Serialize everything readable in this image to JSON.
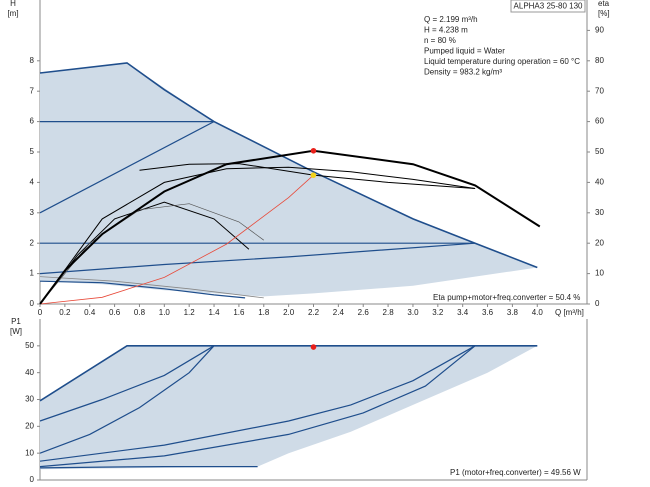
{
  "chart_data": [
    {
      "type": "line",
      "model": "ALPHA3 25-80 130",
      "info_lines": [
        "Q = 2.199 m³/h",
        "H = 4.238 m",
        "n = 80 %",
        "Pumped liquid = Water",
        "Liquid temperature during operation = 60 °C",
        "Density = 983.2 kg/m³"
      ],
      "note": "Eta pump+motor+freq.converter = 50.4 %",
      "ylabel": "H",
      "ylabel_unit": "[m]",
      "y2label": "eta",
      "y2label_unit": "[%]",
      "xlabel": "Q [m³/h]",
      "xlim": [
        0,
        4.4
      ],
      "ylim": [
        0,
        10
      ],
      "y2lim": [
        0,
        100
      ],
      "xticks": [
        0,
        0.2,
        0.4,
        0.6,
        0.8,
        {
          "value": 1,
          "label": "1.0"
        },
        1.2,
        1.4,
        1.6,
        1.8,
        {
          "value": 2,
          "label": "2.0"
        },
        2.2,
        2.4,
        2.6,
        2.8,
        {
          "value": 3,
          "label": "3.0"
        },
        3.2,
        3.4,
        3.6,
        3.8,
        {
          "value": 4,
          "label": "4.0"
        }
      ],
      "yticks": [
        0,
        1,
        2,
        3,
        4,
        5,
        6,
        7,
        8
      ],
      "y2ticks": [
        0,
        10,
        20,
        30,
        40,
        50,
        60,
        70,
        80,
        90
      ],
      "series": [
        {
          "style": "area",
          "color": "#cfdbe7",
          "x": [
            0,
            0.7,
            1.4,
            2.2,
            3.0,
            3.5,
            4.0,
            3.0,
            2.2,
            1.8,
            1.0,
            0.5,
            0
          ],
          "values": [
            7.6,
            7.93,
            6.0,
            4.35,
            2.8,
            2.0,
            1.2,
            0.6,
            0.35,
            0.25,
            0.45,
            0.65,
            0.75
          ]
        },
        {
          "style": "line",
          "color": "#1f4e8c",
          "width": 1.6,
          "x": [
            0,
            0.7,
            1.0,
            1.4,
            2.2,
            3.0,
            3.5,
            4.0
          ],
          "values": [
            7.6,
            7.93,
            7.05,
            6.0,
            4.35,
            2.8,
            2.0,
            1.2
          ]
        },
        {
          "style": "line",
          "color": "#1f4e8c",
          "width": 1.2,
          "x": [
            0,
            1.4
          ],
          "values": [
            6.0,
            6.0
          ]
        },
        {
          "style": "line",
          "color": "#1f4e8c",
          "width": 1.2,
          "x": [
            0,
            1.4
          ],
          "values": [
            3.0,
            6.0
          ]
        },
        {
          "style": "line",
          "color": "#1f4e8c",
          "width": 1.2,
          "x": [
            0,
            3.5
          ],
          "values": [
            2.0,
            2.0
          ]
        },
        {
          "style": "line",
          "color": "#1f4e8c",
          "width": 1.2,
          "x": [
            0,
            1.0,
            2.0,
            3.5
          ],
          "values": [
            1.0,
            1.3,
            1.55,
            2.0
          ]
        },
        {
          "style": "line",
          "color": "#1f4e8c",
          "width": 1.2,
          "x": [
            0,
            0.5,
            1.0,
            1.4,
            1.65
          ],
          "values": [
            0.75,
            0.7,
            0.5,
            0.3,
            0.2
          ]
        },
        {
          "style": "line",
          "color": "#888888",
          "width": 0.8,
          "x": [
            0,
            0.6,
            1.2,
            1.8
          ],
          "values": [
            0.9,
            0.75,
            0.5,
            0.2
          ]
        },
        {
          "style": "line",
          "color": "#000000",
          "width": 1.0,
          "x": [
            0,
            0.5,
            1.0,
            1.5,
            2.0,
            2.5,
            3.0,
            3.5
          ],
          "values": [
            0,
            2.8,
            4.0,
            4.45,
            4.5,
            4.35,
            4.1,
            3.8
          ]
        },
        {
          "style": "line",
          "color": "#000000",
          "width": 1.0,
          "x": [
            0.8,
            1.2,
            1.6,
            2.2,
            2.8,
            3.5
          ],
          "values": [
            4.4,
            4.6,
            4.62,
            4.24,
            4.0,
            3.8
          ]
        },
        {
          "style": "line",
          "color": "#000000",
          "width": 1.0,
          "x": [
            0,
            0.3,
            0.6,
            1.0,
            1.4,
            1.68
          ],
          "values": [
            0,
            1.6,
            2.8,
            3.35,
            2.8,
            1.8
          ]
        },
        {
          "style": "line",
          "color": "#555555",
          "width": 0.7,
          "x": [
            0,
            0.4,
            0.8,
            1.2,
            1.6,
            1.8
          ],
          "values": [
            0,
            2.0,
            3.1,
            3.3,
            2.7,
            2.1
          ]
        },
        {
          "style": "line",
          "color": "#e84a3a",
          "width": 0.8,
          "x": [
            0,
            0.5,
            1.0,
            1.5,
            2.0,
            2.199
          ],
          "values": [
            0,
            0.22,
            0.875,
            1.97,
            3.5,
            4.238
          ]
        },
        {
          "style": "line",
          "color": "#000000",
          "width": 2.0,
          "axis": "y2",
          "x": [
            0,
            0.2,
            0.5,
            1.0,
            1.5,
            2.2,
            3.0,
            3.5,
            4.02
          ],
          "values": [
            0,
            11,
            23,
            37,
            46,
            50.4,
            46,
            39,
            25.5
          ]
        }
      ],
      "points": [
        {
          "color": "#e8201a",
          "axis": "y2",
          "x": 2.2,
          "y": 50.4
        },
        {
          "color": "#f2d21a",
          "x": 2.199,
          "y": 4.238
        }
      ]
    },
    {
      "type": "line",
      "ylabel": "P1",
      "ylabel_unit": "[W]",
      "note": "P1 (motor+freq.converter) = 49.56 W",
      "xlim": [
        0,
        4.4
      ],
      "ylim": [
        0,
        60
      ],
      "yticks": [
        0,
        10,
        20,
        30,
        40,
        50
      ],
      "series": [
        {
          "style": "area",
          "color": "#cfdbe7",
          "x": [
            0,
            0.7,
            4.0,
            3.6,
            3.0,
            2.5,
            2.0,
            1.75,
            0
          ],
          "values": [
            29.5,
            50,
            50,
            40,
            28,
            18,
            10,
            5,
            4
          ]
        },
        {
          "style": "line",
          "color": "#1f4e8c",
          "width": 1.6,
          "x": [
            0,
            0.7,
            4.0
          ],
          "values": [
            29.5,
            50,
            50
          ]
        },
        {
          "style": "line",
          "color": "#1f4e8c",
          "width": 1.2,
          "x": [
            0,
            0.5,
            1.0,
            1.4
          ],
          "values": [
            22,
            30,
            39,
            50
          ]
        },
        {
          "style": "line",
          "color": "#1f4e8c",
          "width": 1.2,
          "x": [
            0,
            0.4,
            0.8,
            1.2,
            1.4
          ],
          "values": [
            10,
            17,
            27,
            40,
            50
          ]
        },
        {
          "style": "line",
          "color": "#1f4e8c",
          "width": 1.2,
          "x": [
            0,
            1.0,
            2.0,
            2.5,
            3.0,
            3.5
          ],
          "values": [
            7,
            13,
            22,
            28,
            37,
            50
          ]
        },
        {
          "style": "line",
          "color": "#1f4e8c",
          "width": 1.2,
          "x": [
            0,
            1.0,
            2.0,
            2.6,
            3.1,
            3.5
          ],
          "values": [
            5,
            9,
            17,
            25,
            35,
            50
          ]
        },
        {
          "style": "line",
          "color": "#1f4e8c",
          "width": 1.2,
          "x": [
            0,
            0.5,
            1.0,
            1.5,
            1.75
          ],
          "values": [
            4.5,
            4.8,
            5,
            5,
            5
          ]
        }
      ],
      "points": [
        {
          "color": "#e8201a",
          "x": 2.2,
          "y": 49.56
        }
      ]
    }
  ]
}
